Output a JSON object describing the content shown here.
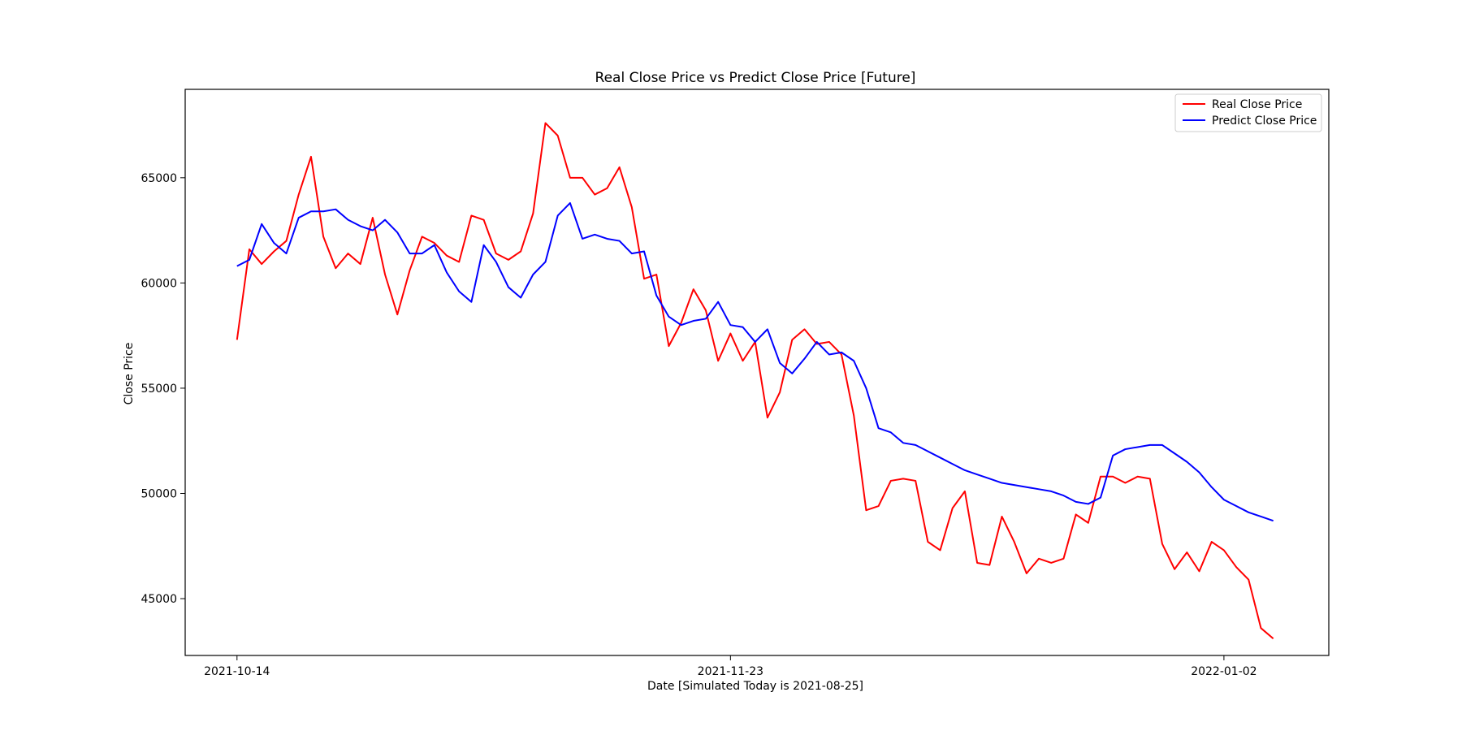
{
  "chart_data": {
    "type": "line",
    "title": "Real Close Price vs Predict Close Price [Future]",
    "xlabel": "Date [Simulated Today is 2021-08-25]",
    "ylabel": "Close Price",
    "x_start": "2021-10-14",
    "x_ticks": [
      {
        "label": "2021-10-14",
        "value": 0
      },
      {
        "label": "2021-11-23",
        "value": 40
      },
      {
        "label": "2022-01-02",
        "value": 80
      }
    ],
    "xlim": [
      -4.2,
      88.5
    ],
    "ylim": [
      42300,
      69200
    ],
    "y_ticks": [
      45000,
      50000,
      55000,
      60000,
      65000
    ],
    "grid": false,
    "legend": "top-right",
    "series": [
      {
        "name": "Real Close Price",
        "color": "#ff0000",
        "values": [
          57300,
          61600,
          60900,
          61500,
          62000,
          64200,
          66000,
          62200,
          60700,
          61400,
          60900,
          63100,
          60400,
          58500,
          60600,
          62200,
          61900,
          61300,
          61000,
          63200,
          63000,
          61400,
          61100,
          61500,
          63300,
          67600,
          67000,
          65000,
          65000,
          64200,
          64500,
          65500,
          63600,
          60200,
          60400,
          57000,
          58100,
          59700,
          58700,
          56300,
          57600,
          56300,
          57200,
          53600,
          54800,
          57300,
          57800,
          57100,
          57200,
          56600,
          53700,
          49200,
          49400,
          50600,
          50700,
          50600,
          47700,
          47300,
          49300,
          50100,
          46700,
          46600,
          48900,
          47700,
          46200,
          46900,
          46700,
          46900,
          49000,
          48600,
          50800,
          50800,
          50500,
          50800,
          50700,
          47600,
          46400,
          47200,
          46300,
          47700,
          47300,
          46500,
          45900,
          43600,
          43100
        ]
      },
      {
        "name": "Predict Close Price",
        "color": "#0000ff",
        "values": [
          60800,
          61100,
          62800,
          61900,
          61400,
          63100,
          63400,
          63400,
          63500,
          63000,
          62700,
          62500,
          63000,
          62400,
          61400,
          61400,
          61800,
          60500,
          59600,
          59100,
          61800,
          61000,
          59800,
          59300,
          60400,
          61000,
          63200,
          63800,
          62100,
          62300,
          62100,
          62000,
          61400,
          61500,
          59400,
          58400,
          58000,
          58200,
          58300,
          59100,
          58000,
          57900,
          57200,
          57800,
          56200,
          55700,
          56400,
          57200,
          56600,
          56700,
          56300,
          55000,
          53100,
          52900,
          52400,
          52300,
          52000,
          51700,
          51400,
          51100,
          50900,
          50700,
          50500,
          50400,
          50300,
          50200,
          50100,
          49900,
          49600,
          49500,
          49800,
          51800,
          52100,
          52200,
          52300,
          52300,
          51900,
          51500,
          51000,
          50300,
          49700,
          49400,
          49100,
          48900,
          48700
        ]
      }
    ]
  }
}
